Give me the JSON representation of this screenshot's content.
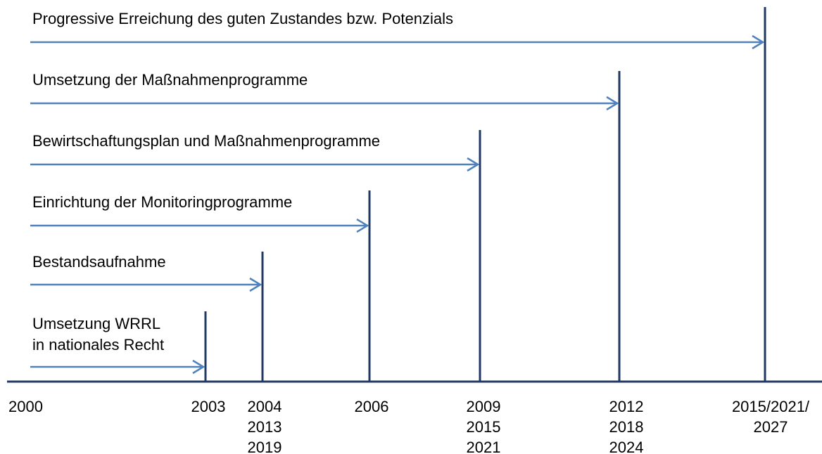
{
  "tasks": [
    {
      "label": [
        "Progressive Erreichung des guten Zustandes bzw. Potenzials"
      ]
    },
    {
      "label": [
        "Umsetzung der Maßnahmenprogramme"
      ]
    },
    {
      "label": [
        "Bewirtschaftungsplan und Maßnahmenprogramme"
      ]
    },
    {
      "label": [
        "Einrichtung der Monitoringprogramme"
      ]
    },
    {
      "label": [
        "Bestandsaufnahme"
      ]
    },
    {
      "label": [
        "Umsetzung WRRL",
        "in nationales Recht"
      ]
    }
  ],
  "years": [
    {
      "lines": [
        "2000"
      ]
    },
    {
      "lines": [
        "2003"
      ]
    },
    {
      "lines": [
        "2004",
        "2013",
        "2019"
      ]
    },
    {
      "lines": [
        "2006"
      ]
    },
    {
      "lines": [
        "2009",
        "2015",
        "2021"
      ]
    },
    {
      "lines": [
        "2012",
        "2018",
        "2024"
      ]
    },
    {
      "lines": [
        "2015/2021/",
        "2027"
      ]
    }
  ]
}
